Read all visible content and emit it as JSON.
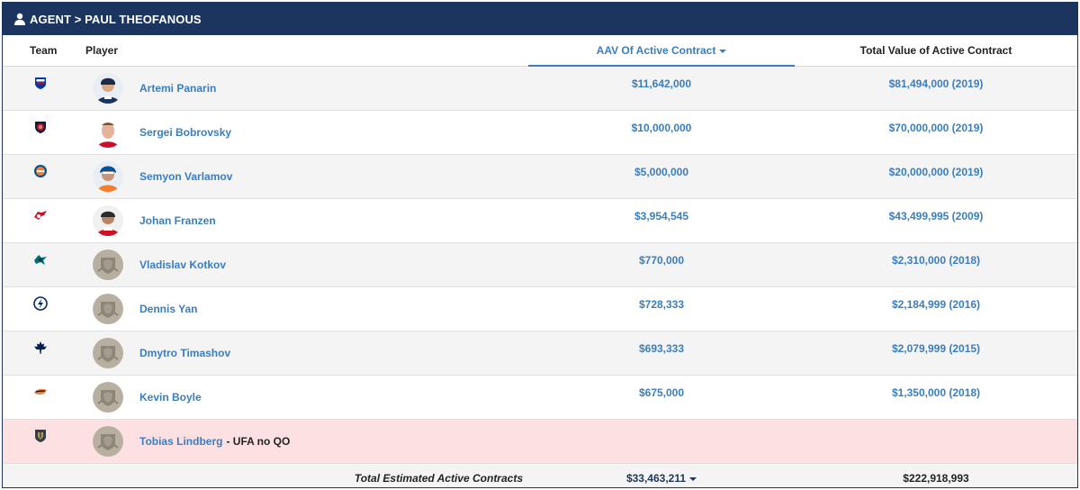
{
  "header": {
    "title": "AGENT > PAUL THEOFANOUS",
    "icon": "user-icon"
  },
  "columns": {
    "team": "Team",
    "player": "Player",
    "aav": "AAV Of Active Contract",
    "total": "Total Value of Active Contract"
  },
  "rows": [
    {
      "team_icon": "rangers-logo-icon",
      "name": "Artemi Panarin",
      "note": "",
      "aav": "$11,642,000",
      "total": "$81,494,000 (2019)"
    },
    {
      "team_icon": "panthers-logo-icon",
      "name": "Sergei Bobrovsky",
      "note": "",
      "aav": "$10,000,000",
      "total": "$70,000,000 (2019)"
    },
    {
      "team_icon": "islanders-logo-icon",
      "name": "Semyon Varlamov",
      "note": "",
      "aav": "$5,000,000",
      "total": "$20,000,000 (2019)"
    },
    {
      "team_icon": "red-wings-logo-icon",
      "name": "Johan Franzen",
      "note": "",
      "aav": "$3,954,545",
      "total": "$43,499,995 (2009)"
    },
    {
      "team_icon": "sharks-logo-icon",
      "name": "Vladislav Kotkov",
      "note": "",
      "aav": "$770,000",
      "total": "$2,310,000 (2018)"
    },
    {
      "team_icon": "lightning-logo-icon",
      "name": "Dennis Yan",
      "note": "",
      "aav": "$728,333",
      "total": "$2,184,999 (2016)"
    },
    {
      "team_icon": "maple-leafs-logo-icon",
      "name": "Dmytro Timashov",
      "note": "",
      "aav": "$693,333",
      "total": "$2,079,999 (2015)"
    },
    {
      "team_icon": "ducks-logo-icon",
      "name": "Kevin Boyle",
      "note": "",
      "aav": "$675,000",
      "total": "$1,350,000 (2018)"
    },
    {
      "team_icon": "golden-knights-logo-icon",
      "name": "Tobias Lindberg",
      "note": "- UFA no QO",
      "aav": "",
      "total": ""
    }
  ],
  "totals": {
    "label": "Total Estimated Active Contracts",
    "aav": "$33,463,211",
    "total": "$222,918,993"
  },
  "colors": {
    "header_bg": "#1c355e",
    "link": "#3a7ebf",
    "ufa_row": "#fde0e2"
  }
}
